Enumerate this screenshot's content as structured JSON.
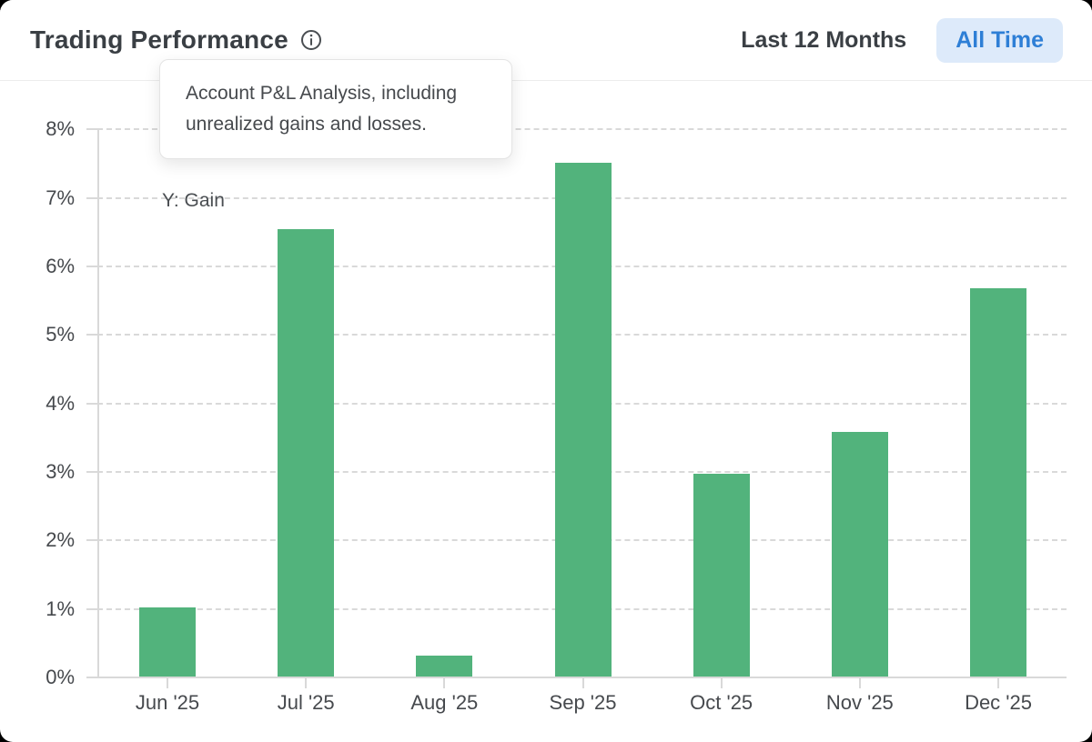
{
  "header": {
    "title": "Trading Performance",
    "range_options": [
      "Last 12 Months",
      "All Time"
    ],
    "selected_range": "All Time"
  },
  "tooltip": {
    "text": "Account P&L Analysis, including unrealized gains and losses."
  },
  "colors": {
    "bar_green": "#52b37c",
    "accent_blue": "#2e7fd6",
    "accent_blue_bg": "#ddeafa",
    "grid_gray": "#d9d9d9",
    "text_dark": "#3a3f44"
  },
  "chart_data": {
    "type": "bar",
    "title": "Trading Performance",
    "categories": [
      "Jun '25",
      "Jul '25",
      "Aug '25",
      "Sep '25",
      "Oct '25",
      "Nov '25",
      "Dec '25"
    ],
    "values": [
      1.02,
      6.55,
      0.32,
      7.51,
      2.97,
      3.58,
      5.68
    ],
    "xlabel": "",
    "ylabel": "Y: Gain",
    "ylim": [
      0,
      8
    ],
    "yticks": [
      0,
      1,
      2,
      3,
      4,
      5,
      6,
      7,
      8
    ],
    "ytick_suffix": "%",
    "grid": "horizontal-dashed",
    "legend": "none",
    "bar_color": "#52b37c"
  }
}
